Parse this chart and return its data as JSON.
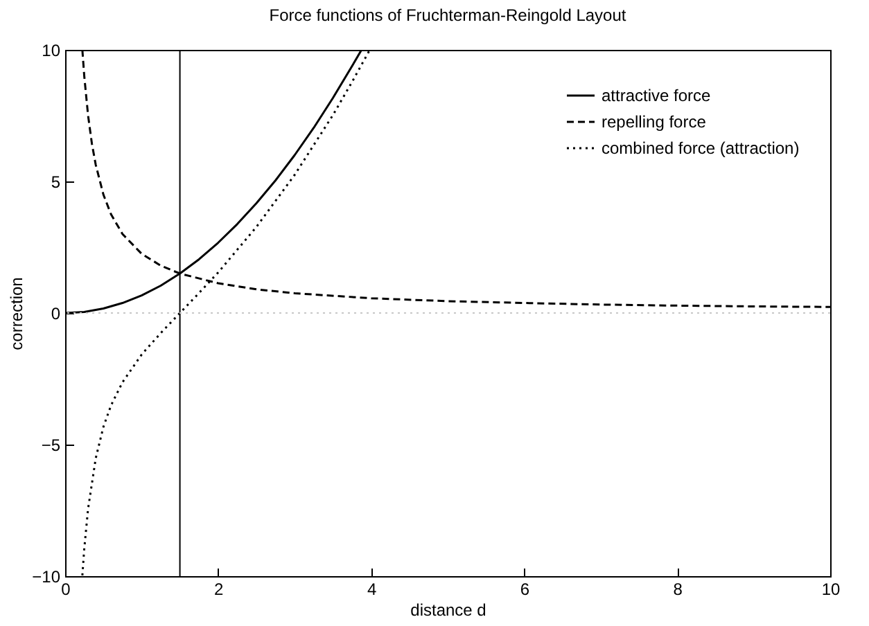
{
  "chart_data": {
    "type": "line",
    "title": "Force functions of Fruchterman-Reingold Layout",
    "xlabel": "distance d",
    "ylabel": "correction",
    "xlim": [
      0,
      10
    ],
    "xticks": [
      0,
      2,
      4,
      6,
      8,
      10
    ],
    "ylim": [
      -10,
      10
    ],
    "yticks": [
      -10,
      -5,
      0,
      5,
      10
    ],
    "grid": false,
    "legend": "top right",
    "marker": "none",
    "ref_lines": [
      {
        "axis": "x",
        "value": 1.5,
        "color": "#000000",
        "line_style": "solid"
      },
      {
        "axis": "y",
        "value": 0,
        "color": "#c8c8c8",
        "line_style": "dotted"
      }
    ],
    "series": [
      {
        "name": "attractive force",
        "color": "#000000",
        "line_style": "solid",
        "x": [
          0,
          0.25,
          0.5,
          0.75,
          1,
          1.25,
          1.5,
          1.75,
          2,
          2.25,
          2.5,
          2.75,
          3,
          3.25,
          3.5,
          3.75,
          3.87
        ],
        "values": [
          0,
          0.04,
          0.17,
          0.38,
          0.67,
          1.04,
          1.5,
          2.04,
          2.67,
          3.38,
          4.17,
          5.04,
          6,
          7.04,
          8.17,
          9.38,
          9.98
        ]
      },
      {
        "name": "repelling force",
        "color": "#000000",
        "line_style": "dashed",
        "x": [
          0.225,
          0.25,
          0.3,
          0.35,
          0.4,
          0.5,
          0.6,
          0.75,
          1,
          1.25,
          1.5,
          2,
          2.5,
          3,
          4,
          5,
          6,
          7,
          8,
          9,
          10
        ],
        "values": [
          10,
          9,
          7.5,
          6.43,
          5.63,
          4.5,
          3.75,
          3,
          2.25,
          1.8,
          1.5,
          1.13,
          0.9,
          0.75,
          0.56,
          0.45,
          0.38,
          0.32,
          0.28,
          0.25,
          0.23
        ]
      },
      {
        "name": "combined force (attraction)",
        "color": "#000000",
        "line_style": "dotted",
        "x": [
          0.225,
          0.25,
          0.3,
          0.4,
          0.5,
          0.6,
          0.75,
          1,
          1.25,
          1.5,
          1.75,
          2,
          2.5,
          3,
          3.5,
          3.75,
          3.98
        ],
        "values": [
          -9.97,
          -8.96,
          -7.44,
          -5.52,
          -4.33,
          -3.51,
          -2.63,
          -1.58,
          -0.76,
          0,
          0.76,
          1.54,
          3.27,
          5.25,
          7.52,
          8.78,
          9.99
        ]
      }
    ]
  }
}
